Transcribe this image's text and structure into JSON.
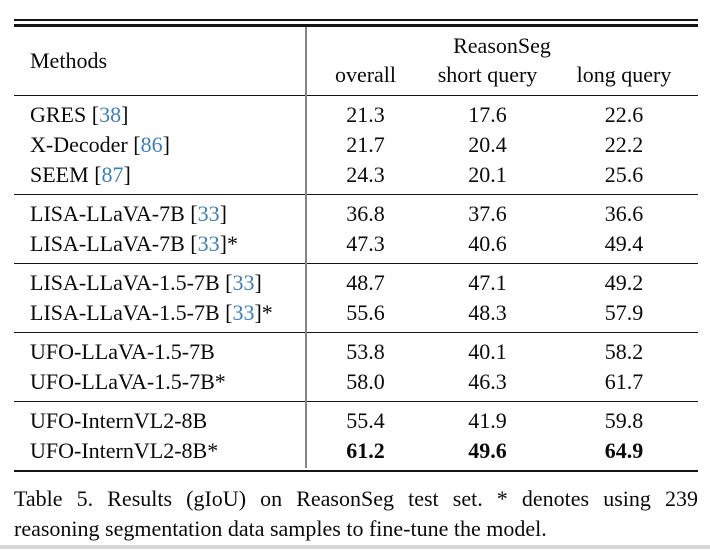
{
  "colors": {
    "citation_blue": "#3d7ebf",
    "rule_black": "#151515",
    "divider_gray": "#858585"
  },
  "table": {
    "header": {
      "methods": "Methods",
      "group_title": "ReasonSeg",
      "columns": [
        "overall",
        "short query",
        "long query"
      ]
    },
    "groups": [
      {
        "rows": [
          {
            "method": "GRES",
            "cite": "38",
            "star": false,
            "bold": false,
            "values": [
              "21.3",
              "17.6",
              "22.6"
            ]
          },
          {
            "method": "X-Decoder",
            "cite": "86",
            "star": false,
            "bold": false,
            "values": [
              "21.7",
              "20.4",
              "22.2"
            ]
          },
          {
            "method": "SEEM",
            "cite": "87",
            "star": false,
            "bold": false,
            "values": [
              "24.3",
              "20.1",
              "25.6"
            ]
          }
        ]
      },
      {
        "rows": [
          {
            "method": "LISA-LLaVA-7B",
            "cite": "33",
            "star": false,
            "bold": false,
            "values": [
              "36.8",
              "37.6",
              "36.6"
            ]
          },
          {
            "method": "LISA-LLaVA-7B",
            "cite": "33",
            "star": true,
            "bold": false,
            "values": [
              "47.3",
              "40.6",
              "49.4"
            ]
          }
        ]
      },
      {
        "rows": [
          {
            "method": "LISA-LLaVA-1.5-7B",
            "cite": "33",
            "star": false,
            "bold": false,
            "values": [
              "48.7",
              "47.1",
              "49.2"
            ]
          },
          {
            "method": "LISA-LLaVA-1.5-7B",
            "cite": "33",
            "star": true,
            "bold": false,
            "values": [
              "55.6",
              "48.3",
              "57.9"
            ]
          }
        ]
      },
      {
        "rows": [
          {
            "method": "UFO-LLaVA-1.5-7B",
            "cite": null,
            "star": false,
            "bold": false,
            "values": [
              "53.8",
              "40.1",
              "58.2"
            ]
          },
          {
            "method": "UFO-LLaVA-1.5-7B",
            "cite": null,
            "star": true,
            "bold": false,
            "values": [
              "58.0",
              "46.3",
              "61.7"
            ]
          }
        ]
      },
      {
        "rows": [
          {
            "method": "UFO-InternVL2-8B",
            "cite": null,
            "star": false,
            "bold": false,
            "values": [
              "55.4",
              "41.9",
              "59.8"
            ]
          },
          {
            "method": "UFO-InternVL2-8B",
            "cite": null,
            "star": true,
            "bold": true,
            "values": [
              "61.2",
              "49.6",
              "64.9"
            ]
          }
        ]
      }
    ]
  },
  "caption": {
    "line1": "Table 5. Results (gIoU) on ReasonSeg test set. * denotes using 239",
    "line2": "reasoning segmentation data samples to fine-tune the model."
  }
}
